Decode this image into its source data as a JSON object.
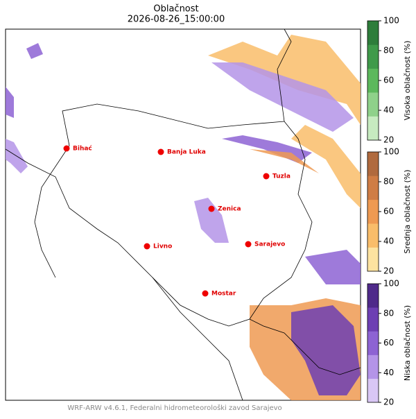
{
  "title": "Oblačnost",
  "subtitle": "2026-08-26_15:00:00",
  "footer": "WRF-ARW v4.6.1, Federalni hidrometeorološki zavod Sarajevo",
  "cities": [
    {
      "name": "Bihać"
    },
    {
      "name": "Banja Luka"
    },
    {
      "name": "Tuzla"
    },
    {
      "name": "Zenica"
    },
    {
      "name": "Livno"
    },
    {
      "name": "Sarajevo"
    },
    {
      "name": "Mostar"
    }
  ],
  "colorbars": [
    {
      "label": "Visoka oblačnost (%)",
      "lim": [
        20,
        100
      ],
      "ticks": [
        20,
        40,
        60,
        80,
        100
      ],
      "colors": [
        "#c7ebc0",
        "#8fd18a",
        "#5cb85c",
        "#3f9a4a",
        "#2e7d3b"
      ]
    },
    {
      "label": "Srednja oblačnost (%)",
      "lim": [
        20,
        100
      ],
      "ticks": [
        20,
        40,
        60,
        80,
        100
      ],
      "colors": [
        "#fde3a0",
        "#f9bd6a",
        "#ee9a52",
        "#cf7d45",
        "#b06a3e"
      ]
    },
    {
      "label": "Niska oblačnost (%)",
      "lim": [
        20,
        100
      ],
      "ticks": [
        20,
        40,
        60,
        80,
        100
      ],
      "colors": [
        "#d9c7f5",
        "#b494e8",
        "#8d63d3",
        "#6d3fb3",
        "#4f2a8a"
      ]
    }
  ]
}
